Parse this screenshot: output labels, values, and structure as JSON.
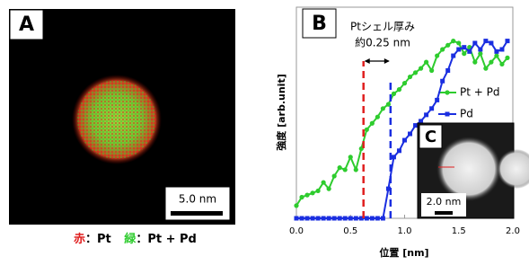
{
  "panel_a": {
    "label": "A",
    "scale_bar": "5.0 nm",
    "caption": {
      "red_key": "赤",
      "red_text": "：Pt",
      "green_key": "緑",
      "green_text": "：Pt + Pd"
    }
  },
  "panel_c": {
    "label": "C",
    "scale_bar": "2.0 nm"
  },
  "chart_data": {
    "type": "line",
    "panel_label": "B",
    "x_label": "位置 [nm]",
    "y_label": "強度 [arb.unit]",
    "annotation": [
      "Ptシェル厚み",
      "約0.25 nm"
    ],
    "x": [
      0,
      0.05,
      0.1,
      0.15,
      0.2,
      0.25,
      0.3,
      0.35,
      0.4,
      0.45,
      0.5,
      0.55,
      0.6,
      0.65,
      0.7,
      0.75,
      0.8,
      0.85,
      0.9,
      0.95,
      1.0,
      1.05,
      1.1,
      1.15,
      1.2,
      1.25,
      1.3,
      1.35,
      1.4,
      1.45,
      1.5,
      1.55,
      1.6,
      1.65,
      1.7,
      1.75,
      1.8,
      1.85,
      1.9,
      1.95
    ],
    "series": [
      {
        "name": "Pt + Pd",
        "color": "#2ecc2e",
        "marker": "circle",
        "values": [
          6,
          10,
          11,
          12,
          13,
          17,
          14,
          20,
          24,
          23,
          29,
          23,
          33,
          42,
          45,
          48,
          52,
          54,
          59,
          61,
          64,
          67,
          69,
          71,
          74,
          70,
          77,
          80,
          82,
          84,
          83,
          78,
          81,
          74,
          78,
          71,
          74,
          77,
          73,
          76
        ]
      },
      {
        "name": "Pd",
        "color": "#1a2ee0",
        "marker": "square",
        "values": [
          0,
          0,
          0,
          0,
          0,
          0,
          0,
          0,
          0,
          0,
          0,
          0,
          0,
          0,
          0,
          0,
          0,
          14,
          29,
          32,
          37,
          40,
          44,
          46,
          49,
          52,
          56,
          65,
          70,
          77,
          80,
          81,
          79,
          83,
          80,
          84,
          83,
          79,
          80,
          84
        ]
      }
    ],
    "markers": [
      {
        "x": 0.62,
        "color": "#e02020"
      },
      {
        "x": 0.87,
        "color": "#1a2ee0"
      }
    ],
    "xlim": [
      0,
      2
    ],
    "ylim": [
      0,
      100
    ],
    "xticks": [
      {
        "value": 0,
        "label": "0.0"
      },
      0.5,
      {
        "value": 1,
        "label": "1.0"
      },
      1.5,
      {
        "value": 2,
        "label": "2.0"
      }
    ],
    "legend": "right"
  }
}
